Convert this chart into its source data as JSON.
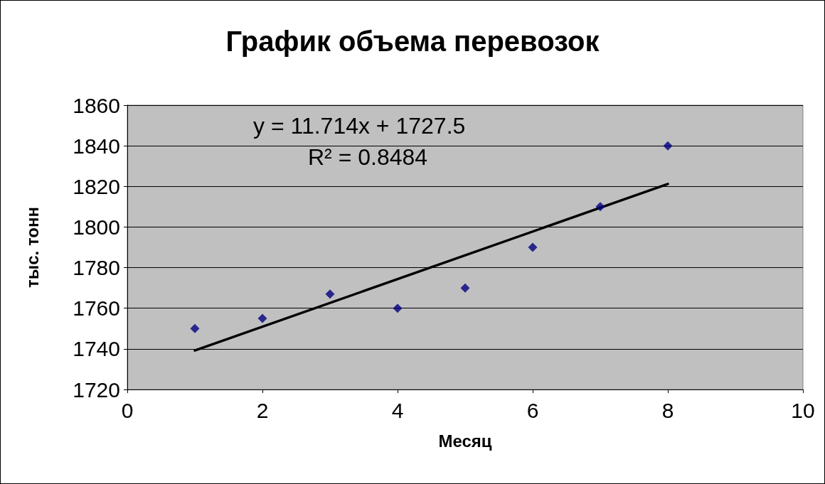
{
  "chart_data": {
    "type": "scatter",
    "title": "График объема перевозок",
    "xlabel": "Месяц",
    "ylabel": "тыс. тонн",
    "series": [
      {
        "color": "#000080",
        "marker": "diamond",
        "x": [
          1,
          2,
          3,
          4,
          5,
          6,
          7,
          8
        ],
        "values": [
          1750,
          1755,
          1767,
          1760,
          1770,
          1790,
          1810,
          1840
        ]
      },
      {
        "type": "line",
        "color": "#000000",
        "marker": "none",
        "line_style": "solid",
        "x": [
          1,
          8
        ],
        "values": [
          1739.2,
          1821.2
        ]
      }
    ],
    "annotations": [
      "y = 11.714x + 1727.5",
      "R² = 0.8484"
    ],
    "xlim": [
      0,
      10
    ],
    "xticks": [
      0,
      2,
      4,
      6,
      8,
      10
    ],
    "ylim": [
      1720,
      1860
    ],
    "yticks": [
      1720,
      1740,
      1760,
      1780,
      1800,
      1820,
      1840,
      1860
    ],
    "grid": "y"
  }
}
